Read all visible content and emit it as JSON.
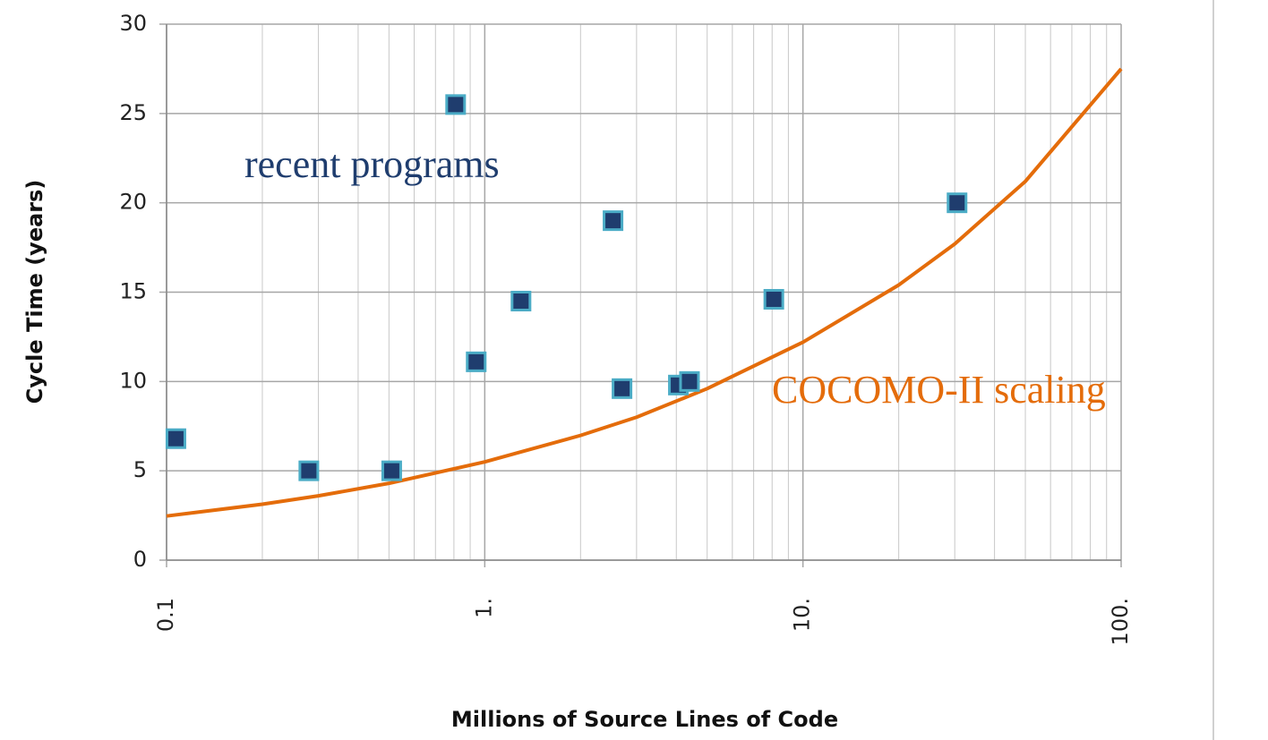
{
  "chart_data": {
    "type": "scatter",
    "x_label": "Millions of Source Lines of Code",
    "y_label": "Cycle Time (years)",
    "xscale": "log",
    "xlim": [
      0.1,
      100
    ],
    "ylim": [
      0,
      30
    ],
    "xticks": [
      {
        "value": 0.1,
        "label": "0.1"
      },
      {
        "value": 1,
        "label": "1."
      },
      {
        "value": 10,
        "label": "10."
      },
      {
        "value": 100,
        "label": "100."
      }
    ],
    "xminorticks": [
      0.2,
      0.3,
      0.4,
      0.5,
      0.6,
      0.7,
      0.8,
      0.9,
      2,
      3,
      4,
      5,
      6,
      7,
      8,
      9,
      20,
      30,
      40,
      50,
      60,
      70,
      80,
      90
    ],
    "yticks": [
      0,
      5,
      10,
      15,
      20,
      25,
      30
    ],
    "grid": true,
    "points": {
      "x": [
        0.107,
        0.28,
        0.51,
        0.81,
        0.94,
        1.3,
        2.53,
        2.7,
        4.06,
        4.4,
        8.1,
        30.5
      ],
      "values": [
        6.8,
        5,
        5,
        25.5,
        11.1,
        14.5,
        19,
        9.6,
        9.8,
        10,
        14.6,
        20
      ],
      "color": "#1f3d6e",
      "edge_color": "#4bacc6"
    },
    "curve": {
      "x": [
        0.1,
        0.2,
        0.3,
        0.5,
        1,
        2,
        3,
        5,
        10,
        20,
        30,
        50,
        100
      ],
      "values": [
        2.47,
        3.13,
        3.6,
        4.3,
        5.5,
        6.98,
        8.0,
        9.6,
        12.2,
        15.4,
        17.7,
        21.2,
        27.5
      ],
      "color": "#e46c0a"
    },
    "annotations": [
      {
        "text": "recent programs",
        "color": "#1f3d6e"
      },
      {
        "text": "COCOMO-II scaling",
        "color": "#e46c0a"
      }
    ]
  }
}
